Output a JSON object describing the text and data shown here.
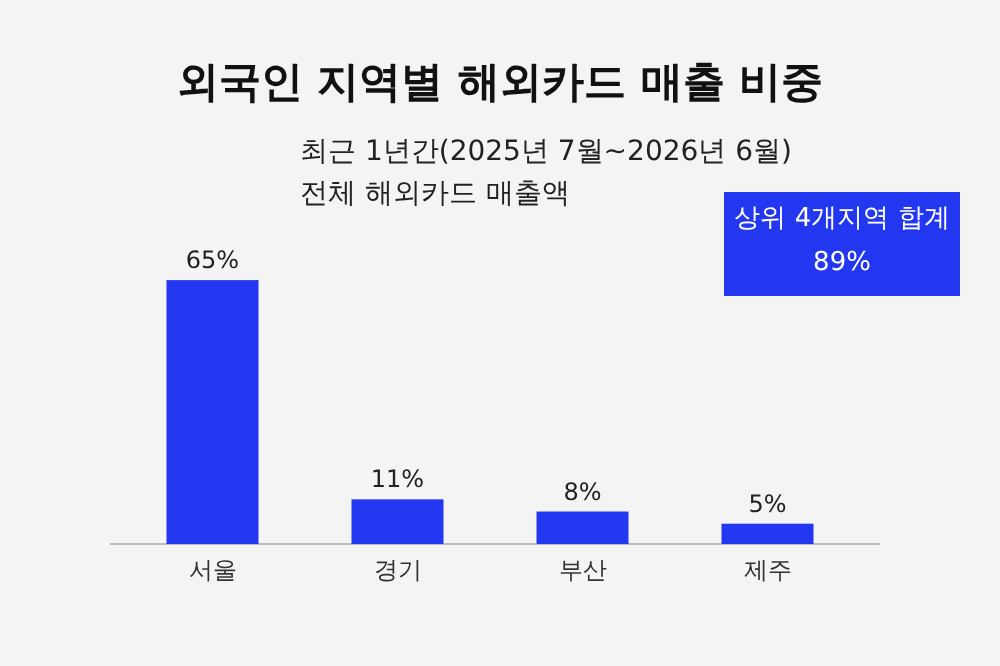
{
  "chart_data": {
    "type": "bar",
    "title": "외국인 지역별 해외카드 매출 비중",
    "subtitle": "최근 1년간(2025년 7월~2026년 6월)\n전체 해외카드 매출액",
    "categories": [
      "서울",
      "경기",
      "부산",
      "제주"
    ],
    "values": [
      65,
      11,
      8,
      5
    ],
    "value_labels": [
      "65%",
      "11%",
      "8%",
      "5%"
    ],
    "color": "#2337f0",
    "annotations": [
      "상위 4개지역 합계\n89%"
    ]
  }
}
